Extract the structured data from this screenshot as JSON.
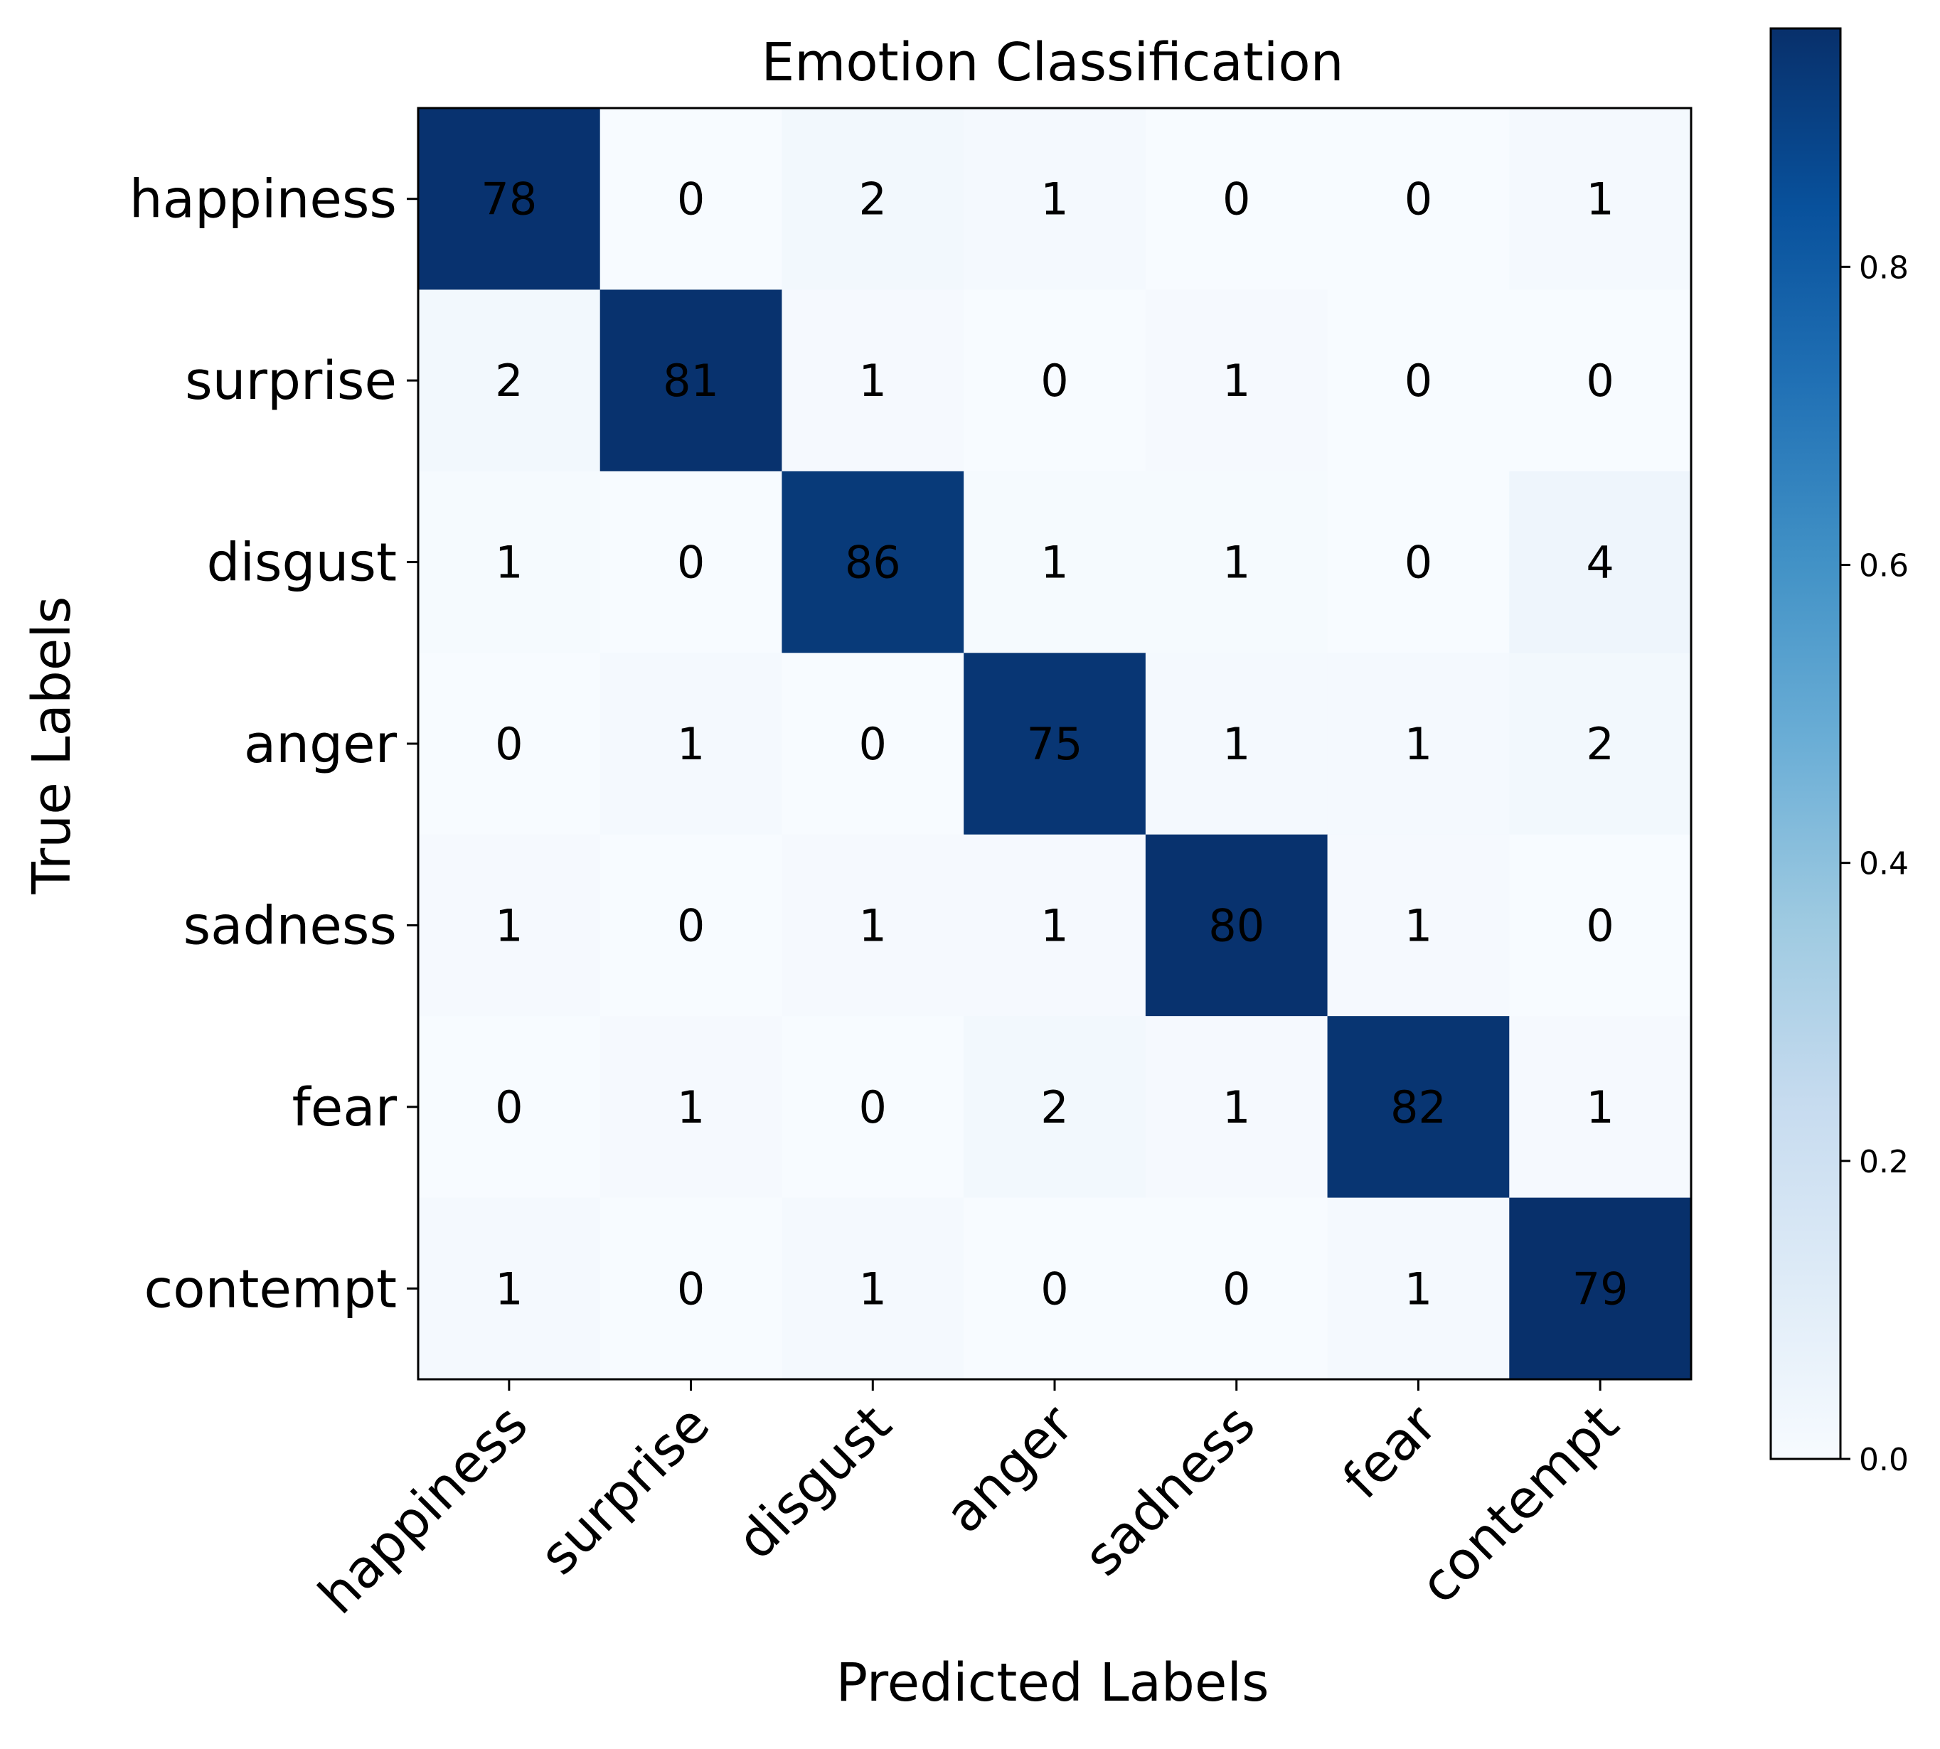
{
  "chart_data": {
    "type": "heatmap",
    "title": "Emotion Classification",
    "xlabel": "Predicted Labels",
    "ylabel": "True Labels",
    "x_categories": [
      "happiness",
      "surprise",
      "disgust",
      "anger",
      "sadness",
      "fear",
      "contempt"
    ],
    "y_categories": [
      "happiness",
      "surprise",
      "disgust",
      "anger",
      "sadness",
      "fear",
      "contempt"
    ],
    "values": [
      [
        78,
        0,
        2,
        1,
        0,
        0,
        1
      ],
      [
        2,
        81,
        1,
        0,
        1,
        0,
        0
      ],
      [
        1,
        0,
        86,
        1,
        1,
        0,
        4
      ],
      [
        0,
        1,
        0,
        75,
        1,
        1,
        2
      ],
      [
        1,
        0,
        1,
        1,
        80,
        1,
        0
      ],
      [
        0,
        1,
        0,
        2,
        1,
        82,
        1
      ],
      [
        1,
        0,
        1,
        0,
        0,
        1,
        79
      ]
    ],
    "color_normalization": "row",
    "colormap": "Blues",
    "colorbar": {
      "range": [
        0.0,
        0.96
      ],
      "ticks": [
        0.0,
        0.2,
        0.4,
        0.6,
        0.8
      ],
      "tick_labels": [
        "0.0",
        "0.2",
        "0.4",
        "0.6",
        "0.8"
      ]
    },
    "legend": "none",
    "grid": false
  }
}
